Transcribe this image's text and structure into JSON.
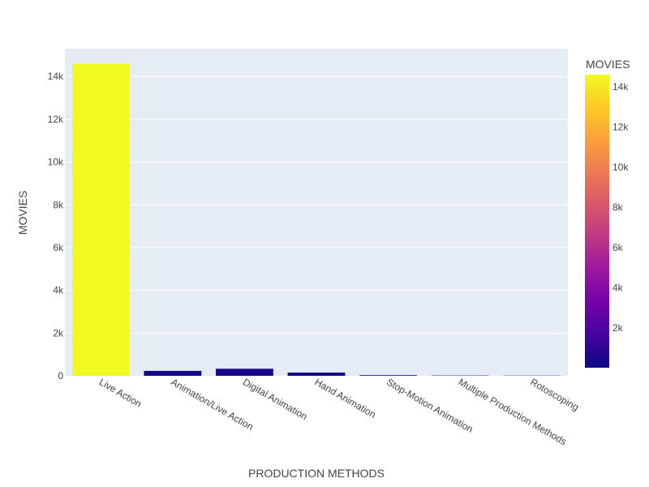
{
  "chart_data": {
    "type": "bar",
    "xlabel": "PRODUCTION METHODS",
    "ylabel": "MOVIES",
    "categories": [
      "Live Action",
      "Animation/Live Action",
      "Digital Animation",
      "Hand Animation",
      "Stop-Motion Animation",
      "Multiple Production Methods",
      "Rotoscoping"
    ],
    "values": [
      14600,
      230,
      330,
      150,
      30,
      15,
      10
    ],
    "ylim": [
      0,
      15300
    ],
    "yticks": [
      0,
      2000,
      4000,
      6000,
      8000,
      10000,
      12000,
      14000
    ],
    "ytick_labels": [
      "0",
      "2k",
      "4k",
      "6k",
      "8k",
      "10k",
      "12k",
      "14k"
    ],
    "grid": true,
    "colorbar": {
      "title": "MOVIES",
      "range": [
        10,
        14600
      ],
      "ticks": [
        2000,
        4000,
        6000,
        8000,
        10000,
        12000,
        14000
      ],
      "tick_labels": [
        "2k",
        "4k",
        "6k",
        "8k",
        "10k",
        "12k",
        "14k"
      ],
      "colorscale": [
        "#0d0887",
        "#46039f",
        "#7201a8",
        "#9c179e",
        "#bd3786",
        "#d8576b",
        "#ed7953",
        "#fb9f3a",
        "#fdca26",
        "#f0f921"
      ]
    },
    "plot_background": "#e5ecf6"
  }
}
